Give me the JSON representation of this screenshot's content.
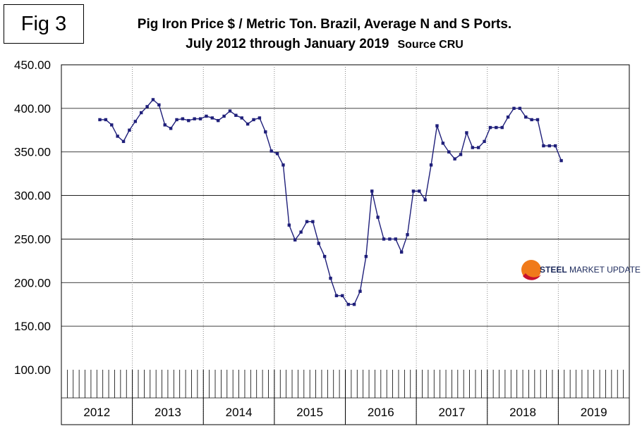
{
  "figure_label": "Fig 3",
  "title_line1": "Pig Iron Price $ / Metric Ton. Brazil, Average N and S Ports.",
  "title_line2": "July 2012 through January 2019",
  "source": "Source CRU",
  "logo": {
    "brand_bold": "STEEL",
    "brand_rest": " MARKET UPDATE"
  },
  "colors": {
    "series": "#1f1f7a",
    "grid": "#000000",
    "logo_orange": "#f07a1a",
    "logo_red": "#c8102e"
  },
  "chart_data": {
    "type": "line",
    "title": "Pig Iron Price $ / Metric Ton. Brazil, Average N and S Ports.",
    "subtitle": "July 2012 through January 2019",
    "xlabel": "",
    "ylabel": "",
    "ylim": [
      100,
      450
    ],
    "yticks": [
      "100.00",
      "150.00",
      "200.00",
      "250.00",
      "300.00",
      "350.00",
      "400.00",
      "450.00"
    ],
    "year_labels": [
      "2012",
      "2013",
      "2014",
      "2015",
      "2016",
      "2017",
      "2018",
      "2019"
    ],
    "first_month_index": 6,
    "grid": true,
    "series": [
      {
        "name": "Pig Iron Price",
        "values": [
          387,
          387,
          381,
          368,
          362,
          375,
          385,
          395,
          402,
          410,
          404,
          381,
          377,
          387,
          388,
          386,
          388,
          388,
          391,
          389,
          386,
          391,
          397,
          392,
          389,
          382,
          387,
          389,
          373,
          351,
          348,
          335,
          266,
          249,
          258,
          270,
          270,
          245,
          230,
          205,
          185,
          185,
          175,
          175,
          190,
          230,
          305,
          275,
          250,
          250,
          250,
          235,
          255,
          305,
          305,
          295,
          335,
          380,
          360,
          350,
          342,
          347,
          372,
          355,
          355,
          362,
          378,
          378,
          378,
          390,
          400,
          400,
          390,
          387,
          387,
          357,
          357,
          357,
          340
        ]
      }
    ]
  }
}
